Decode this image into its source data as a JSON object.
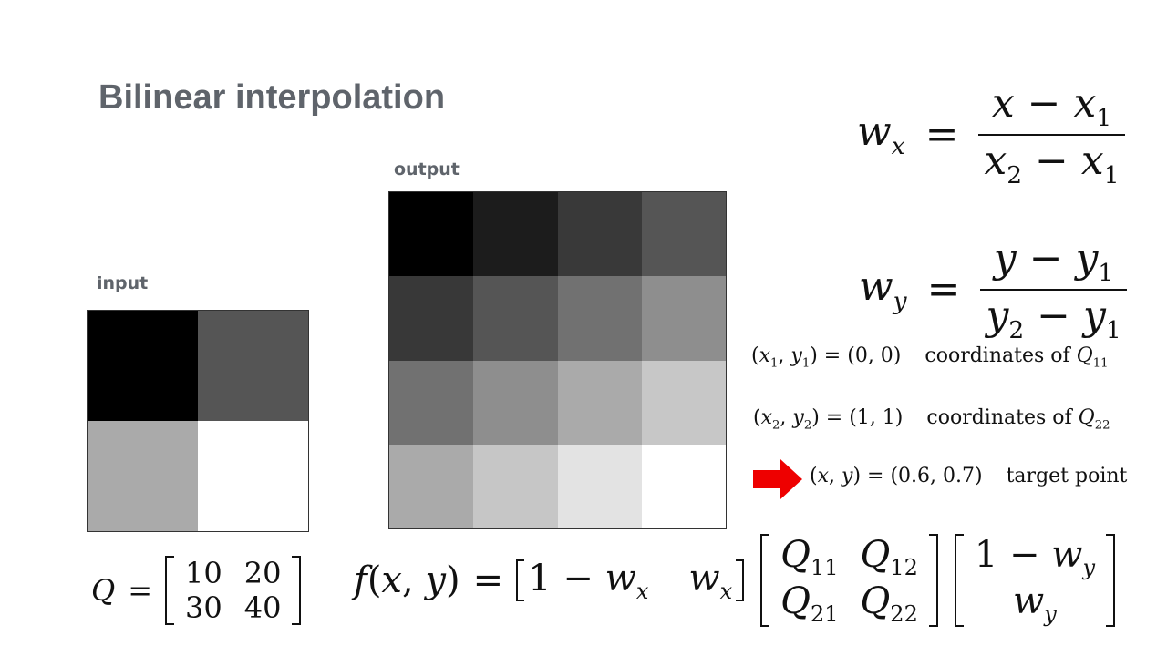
{
  "title": "Bilinear interpolation",
  "input_label": "input",
  "output_label": "output",
  "input_grid": {
    "rows": 2,
    "cols": 2,
    "colors": [
      "#000000",
      "#555555",
      "#aaaaaa",
      "#ffffff"
    ]
  },
  "output_grid": {
    "rows": 4,
    "cols": 4,
    "colors": [
      "#000000",
      "#1c1c1c",
      "#393939",
      "#555555",
      "#383838",
      "#555555",
      "#717171",
      "#8e8e8e",
      "#717171",
      "#8e8e8e",
      "#aaaaaa",
      "#c7c7c7",
      "#aaaaaa",
      "#c6c6c6",
      "#e3e3e3",
      "#ffffff"
    ]
  },
  "formulas": {
    "wx_lhs": "w",
    "wx_sub": "x",
    "wx_num": "x − x",
    "wx_den": "x",
    "wy_lhs": "w",
    "wy_sub": "y"
  },
  "coords": [
    {
      "expr": "(x1, y1) = (0, 0)",
      "desc": "coordinates of Q11"
    },
    {
      "expr": "(x2, y2) = (1, 1)",
      "desc": "coordinates of Q22"
    },
    {
      "expr": "(x, y) = (0.6, 0.7)",
      "desc": "target point"
    }
  ],
  "coord_desc": {
    "c1": "coordinates of",
    "c2": "coordinates of",
    "c3": "target point"
  },
  "q_matrix": {
    "lhs": "Q",
    "values": [
      "10",
      "20",
      "30",
      "40"
    ]
  },
  "arrow_color": "#ee0000"
}
